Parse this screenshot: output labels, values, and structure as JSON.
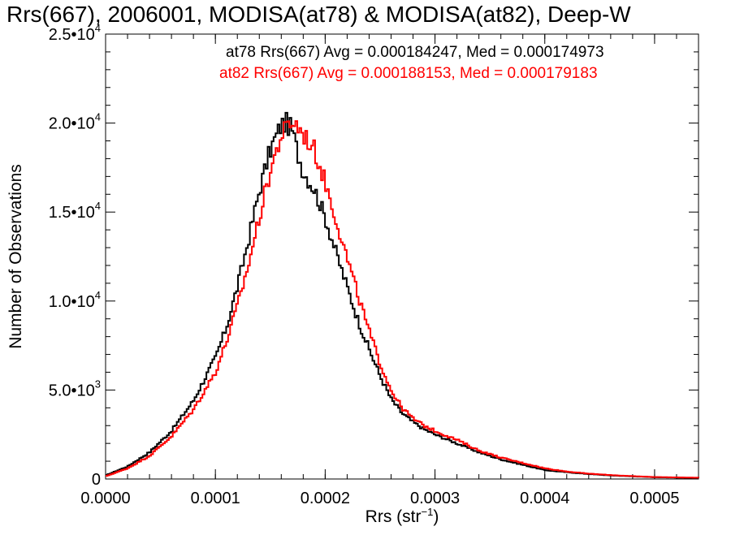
{
  "chart_data": {
    "type": "line",
    "title": "Rrs(667), 2006001, MODISA(at78) & MODISA(at82), Deep-W",
    "xlabel": "Rrs (str",
    "xlabel_sup": "−1",
    "xlabel_close": ")",
    "ylabel": "Number of Observations",
    "xlim": [
      0.0,
      0.00054
    ],
    "ylim": [
      0,
      25000
    ],
    "x_ticks": [
      "0.0000",
      "0.0001",
      "0.0002",
      "0.0003",
      "0.0004",
      "0.0005"
    ],
    "y_ticks": [
      {
        "value": 0,
        "mantissa": "0",
        "exp": ""
      },
      {
        "value": 5000,
        "mantissa": "5.0•10",
        "exp": "3"
      },
      {
        "value": 10000,
        "mantissa": "1.0•10",
        "exp": "4"
      },
      {
        "value": 15000,
        "mantissa": "1.5•10",
        "exp": "4"
      },
      {
        "value": 20000,
        "mantissa": "2.0•10",
        "exp": "4"
      },
      {
        "value": 25000,
        "mantissa": "2.5•10",
        "exp": "4"
      }
    ],
    "annotations": [
      "at78 Rrs(667) Avg = 0.000184247, Med = 0.000174973",
      "at82 Rrs(667) Avg = 0.000188153, Med = 0.000179183"
    ],
    "grid": false,
    "series": [
      {
        "name": "at78",
        "color": "#000000",
        "x": [
          0.0,
          2e-05,
          4e-05,
          6e-05,
          8e-05,
          0.0001,
          0.00011,
          0.00012,
          0.00013,
          0.00014,
          0.00015,
          0.00016,
          0.000165,
          0.00017,
          0.000175,
          0.00018,
          0.00019,
          0.0002,
          0.00021,
          0.00022,
          0.00023,
          0.00024,
          0.00025,
          0.00026,
          0.00027,
          0.00028,
          0.00029,
          0.0003,
          0.00032,
          0.00034,
          0.00036,
          0.00038,
          0.0004,
          0.00042,
          0.00044,
          0.00046,
          0.00048,
          0.0005,
          0.00052,
          0.00054
        ],
        "y": [
          200,
          700,
          1500,
          2700,
          4400,
          6800,
          8500,
          10800,
          13400,
          16200,
          18500,
          19900,
          20000,
          19600,
          18300,
          17300,
          16300,
          14700,
          12700,
          10800,
          8900,
          7300,
          5800,
          4500,
          3700,
          3200,
          2800,
          2500,
          2000,
          1500,
          1100,
          800,
          500,
          380,
          280,
          200,
          150,
          100,
          80,
          60
        ]
      },
      {
        "name": "at82",
        "color": "#ff0000",
        "x": [
          0.0,
          2e-05,
          4e-05,
          6e-05,
          8e-05,
          0.0001,
          0.00011,
          0.00012,
          0.00013,
          0.00014,
          0.00015,
          0.00016,
          0.00017,
          0.000175,
          0.00018,
          0.00019,
          0.0002,
          0.00021,
          0.00022,
          0.00023,
          0.00024,
          0.00025,
          0.00026,
          0.00027,
          0.00028,
          0.00029,
          0.0003,
          0.00032,
          0.00034,
          0.00036,
          0.00038,
          0.0004,
          0.00042,
          0.00044,
          0.00046,
          0.00048,
          0.0005,
          0.00052,
          0.00054
        ],
        "y": [
          150,
          600,
          1300,
          2400,
          3900,
          6000,
          7700,
          9700,
          12000,
          14700,
          17300,
          19300,
          20100,
          19800,
          19400,
          18500,
          16700,
          14600,
          12400,
          10300,
          8300,
          6500,
          5000,
          4000,
          3400,
          3000,
          2700,
          2200,
          1600,
          1200,
          900,
          600,
          420,
          300,
          220,
          160,
          110,
          90,
          70
        ]
      }
    ]
  }
}
